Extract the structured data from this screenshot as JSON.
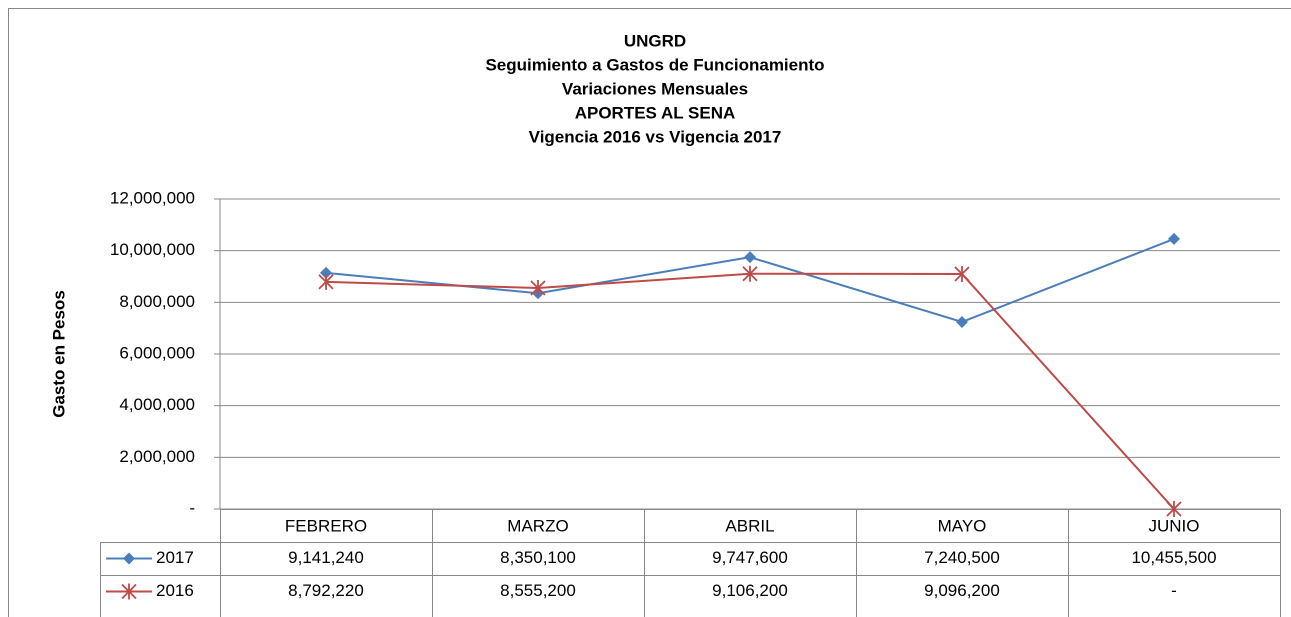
{
  "chart_data": {
    "type": "line",
    "title": [
      "UNGRD",
      "Seguimiento a Gastos de Funcionamiento",
      "Variaciones Mensuales",
      "APORTES AL SENA",
      "Vigencia 2016 vs Vigencia 2017"
    ],
    "y_label": "Gasto en Pesos",
    "categories": [
      "FEBRERO",
      "MARZO",
      "ABRIL",
      "MAYO",
      "JUNIO"
    ],
    "series": [
      {
        "name": "2017",
        "color": "#4a7ebb",
        "marker": "diamond",
        "values": [
          9141240,
          8350100,
          9747600,
          7240500,
          10455500
        ],
        "value_labels": [
          "9,141,240",
          "8,350,100",
          "9,747,600",
          "7,240,500",
          "10,455,500"
        ]
      },
      {
        "name": "2016",
        "color": "#be4b48",
        "marker": "star",
        "values": [
          8792220,
          8555200,
          9106200,
          9096200,
          0
        ],
        "value_labels": [
          "8,792,220",
          "8,555,200",
          "9,106,200",
          "9,096,200",
          "-"
        ]
      }
    ],
    "ylim": [
      0,
      12000000
    ],
    "yticks": [
      {
        "value": 0,
        "label": "-"
      },
      {
        "value": 2000000,
        "label": "2,000,000"
      },
      {
        "value": 4000000,
        "label": "4,000,000"
      },
      {
        "value": 6000000,
        "label": "6,000,000"
      },
      {
        "value": 8000000,
        "label": "8,000,000"
      },
      {
        "value": 10000000,
        "label": "10,000,000"
      },
      {
        "value": 12000000,
        "label": "12,000,000"
      }
    ],
    "grid": true
  }
}
